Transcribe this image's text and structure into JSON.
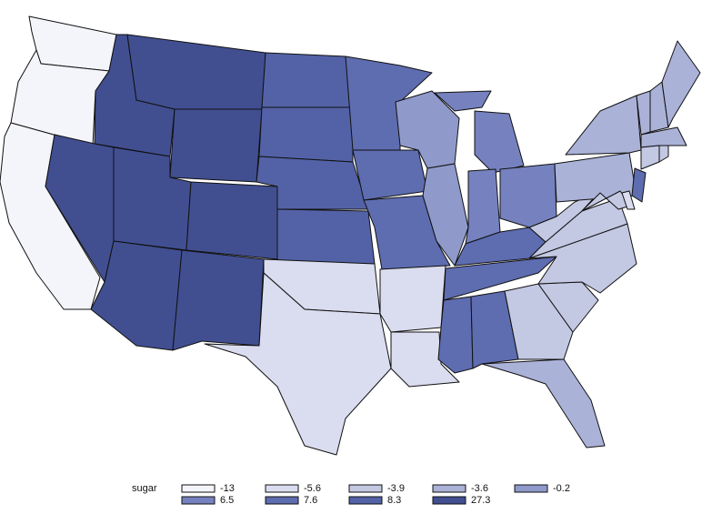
{
  "chart_data": {
    "type": "choropleth",
    "legend_title": "sugar",
    "legend": [
      {
        "value": -13,
        "color": "#f3f5fb"
      },
      {
        "value": -5.6,
        "color": "#dadcef"
      },
      {
        "value": -3.9,
        "color": "#c3c8e3"
      },
      {
        "value": -3.6,
        "color": "#aab2d8"
      },
      {
        "value": -0.2,
        "color": "#8f9acb"
      },
      {
        "value": 6.5,
        "color": "#7682bf"
      },
      {
        "value": 7.6,
        "color": "#5e6cb0"
      },
      {
        "value": 8.3,
        "color": "#5362a6"
      },
      {
        "value": 27.3,
        "color": "#414f91"
      }
    ]
  }
}
